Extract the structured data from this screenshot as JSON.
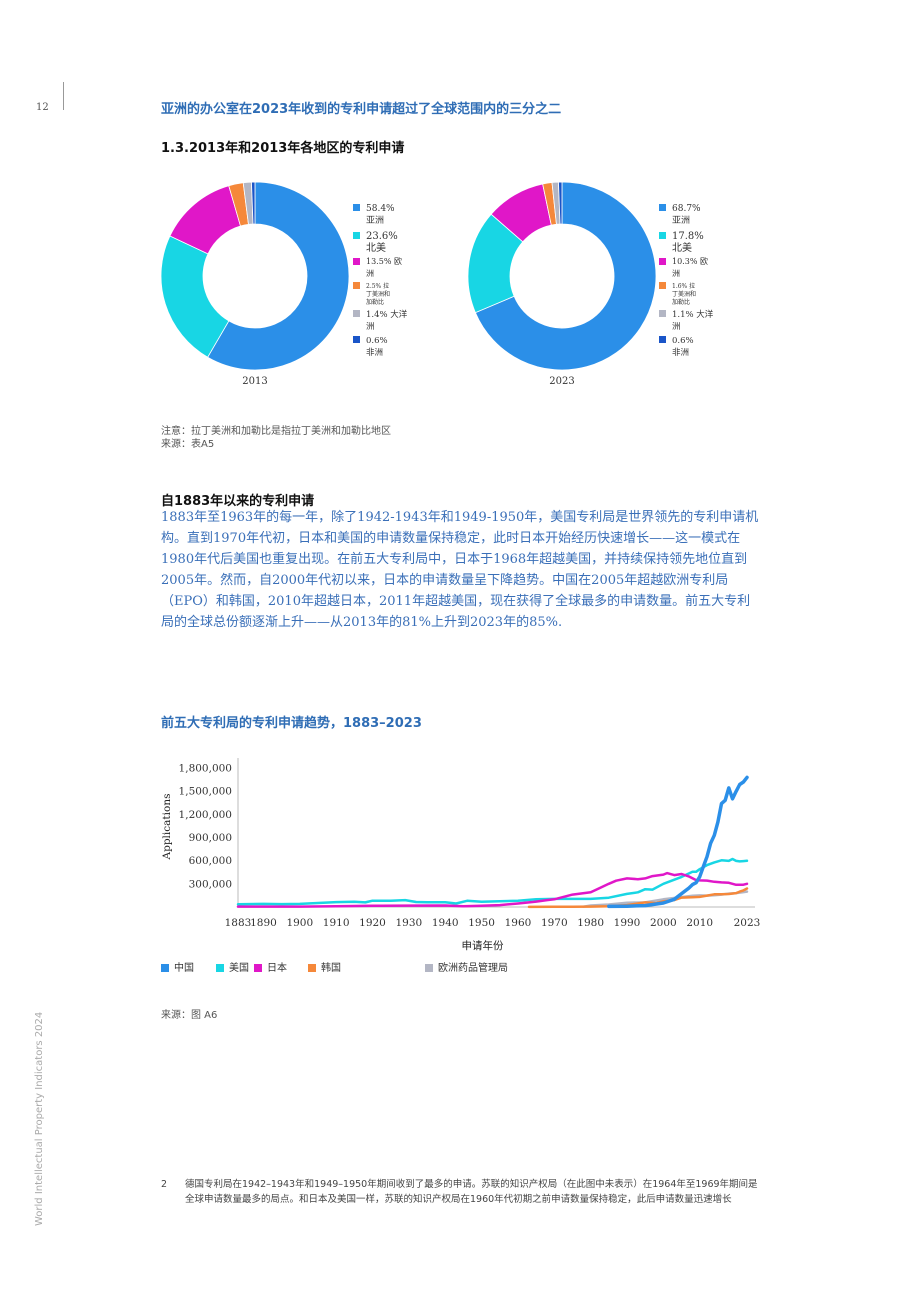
{
  "page": {
    "number": "12",
    "headline": "亚洲的办公室在2023年收到的专利申请超过了全球范围内的三分之二",
    "sidebar": "World Intellectual Property Indicators 2024"
  },
  "colors": {
    "asia": "#2b8fe8",
    "north_america": "#18d6e4",
    "europe": "#e017c8",
    "latam": "#f5883a",
    "oceania": "#b3b6c4",
    "africa": "#1a55c8",
    "china": "#2b8fe8",
    "usa": "#18d6e4",
    "japan": "#e017c8",
    "korea": "#f5883a",
    "epo": "#b3b6c4"
  },
  "donut_section": {
    "title": "1.3.2013年和2013年各地区的专利申请",
    "note": "注意：拉丁美洲和加勒比是指拉丁美洲和加勒比地区",
    "source": "来源：表A5"
  },
  "text_section": {
    "title": "自1883年以来的专利申请",
    "body": "1883年至1963年的每一年，除了1942-1943年和1949-1950年，美国专利局是世界领先的专利申请机构。直到1970年代初，日本和美国的申请数量保持稳定，此时日本开始经历快速增长——这一模式在1980年代后美国也重复出现。在前五大专利局中，日本于1968年超越美国，并持续保持领先地位直到2005年。然而，自2000年代初以来，日本的申请数量呈下降趋势。中国在2005年超越欧洲专利局（EPO）和韩国，2010年超越日本，2011年超越美国，现在获得了全球最多的申请数量。前五大专利局的全球总份额逐渐上升——从2013年的81%上升到2023年的85%."
  },
  "line_section": {
    "title": "前五大专利局的专利申请趋势，1883–2023",
    "source": "来源：图 A6"
  },
  "footnote": {
    "number": "2",
    "text": "德国专利局在1942–1943年和1949–1950年期间收到了最多的申请。苏联的知识产权局（在此图中未表示）在1964年至1969年期间是全球申请数量最多的局点。和日本及美国一样，苏联的知识产权局在1960年代初期之前申请数量保持稳定，此后申请数量迅速增长"
  },
  "chart_data": [
    {
      "type": "pie",
      "title": "2013",
      "donut": true,
      "slices": [
        {
          "label": "亚洲",
          "pct_text": "58.4%",
          "value": 58.4
        },
        {
          "label": "北美",
          "pct_text": "23.6%",
          "value": 23.6
        },
        {
          "label": "欧洲",
          "pct_text": "13.5%",
          "value": 13.5
        },
        {
          "label": "拉丁美洲和加勒比",
          "pct_text": "2.5%",
          "value": 2.5
        },
        {
          "label": "大洋洲",
          "pct_text": "1.4%",
          "value": 1.4
        },
        {
          "label": "非洲",
          "pct_text": "0.6%",
          "value": 0.6
        }
      ],
      "legend_text": [
        "58.4%",
        "亚洲",
        "23.6%",
        "北美",
        "13.5% 欧",
        "洲",
        "2.5% 拉",
        "丁美洲和",
        "加勒比",
        "1.4% 大洋",
        "洲",
        "0.6%",
        "非洲"
      ]
    },
    {
      "type": "pie",
      "title": "2023",
      "donut": true,
      "slices": [
        {
          "label": "亚洲",
          "pct_text": "68.7%",
          "value": 68.7
        },
        {
          "label": "北美",
          "pct_text": "17.8%",
          "value": 17.8
        },
        {
          "label": "欧洲",
          "pct_text": "10.3%",
          "value": 10.3
        },
        {
          "label": "拉丁美洲和加勒比",
          "pct_text": "1.6%",
          "value": 1.6
        },
        {
          "label": "大洋洲",
          "pct_text": "1.1%",
          "value": 1.1
        },
        {
          "label": "非洲",
          "pct_text": "0.6%",
          "value": 0.6
        }
      ],
      "legend_text": [
        "68.7%",
        "亚洲",
        "17.8%",
        "北美",
        "10.3% 欧",
        "洲",
        "1.6% 拉",
        "丁美洲和",
        "加勒比",
        "1.1% 大洋",
        "洲",
        "0.6%",
        "非洲"
      ]
    },
    {
      "type": "line",
      "title": "前五大专利局的专利申请趋势，1883–2023",
      "xlabel": "申请年份",
      "ylabel": "Applications",
      "xlim": [
        1883,
        2023
      ],
      "ylim": [
        0,
        1800000
      ],
      "x_ticks": [
        1883,
        1890,
        1900,
        1910,
        1920,
        1930,
        1940,
        1950,
        1960,
        1970,
        1980,
        1990,
        2000,
        2010,
        2023
      ],
      "y_ticks": [
        300000,
        600000,
        900000,
        1200000,
        1500000,
        1800000
      ],
      "y_tick_labels": [
        "300,000",
        "600,000",
        "900,000",
        "1,200,000",
        "1,500,000",
        "1,800,000"
      ],
      "legend": [
        "中国",
        "美国",
        "日本",
        "韩国",
        "欧洲药品管理局"
      ],
      "series": [
        {
          "name": "中国",
          "color_key": "china",
          "points": [
            [
              1985,
              8000
            ],
            [
              1990,
              10000
            ],
            [
              1995,
              18000
            ],
            [
              2000,
              52000
            ],
            [
              2003,
              100000
            ],
            [
              2005,
              173000
            ],
            [
              2007,
              245000
            ],
            [
              2008,
              290000
            ],
            [
              2009,
              315000
            ],
            [
              2010,
              391000
            ],
            [
              2011,
              526000
            ],
            [
              2012,
              652000
            ],
            [
              2013,
              825000
            ],
            [
              2014,
              928000
            ],
            [
              2015,
              1101000
            ],
            [
              2016,
              1339000
            ],
            [
              2017,
              1382000
            ],
            [
              2018,
              1542000
            ],
            [
              2019,
              1401000
            ],
            [
              2020,
              1497000
            ],
            [
              2021,
              1586000
            ],
            [
              2022,
              1619000
            ],
            [
              2023,
              1678000
            ]
          ]
        },
        {
          "name": "美国",
          "color_key": "usa",
          "points": [
            [
              1883,
              35000
            ],
            [
              1890,
              40000
            ],
            [
              1895,
              38000
            ],
            [
              1900,
              40000
            ],
            [
              1905,
              52000
            ],
            [
              1910,
              64000
            ],
            [
              1915,
              68000
            ],
            [
              1918,
              60000
            ],
            [
              1920,
              82000
            ],
            [
              1925,
              80000
            ],
            [
              1929,
              90000
            ],
            [
              1932,
              65000
            ],
            [
              1935,
              62000
            ],
            [
              1940,
              62000
            ],
            [
              1943,
              45000
            ],
            [
              1946,
              80000
            ],
            [
              1950,
              67000
            ],
            [
              1955,
              75000
            ],
            [
              1960,
              80000
            ],
            [
              1965,
              100000
            ],
            [
              1970,
              105000
            ],
            [
              1975,
              105000
            ],
            [
              1980,
              105000
            ],
            [
              1985,
              120000
            ],
            [
              1990,
              170000
            ],
            [
              1993,
              190000
            ],
            [
              1995,
              230000
            ],
            [
              1997,
              225000
            ],
            [
              2000,
              300000
            ],
            [
              2005,
              390000
            ],
            [
              2008,
              456000
            ],
            [
              2009,
              456000
            ],
            [
              2010,
              490000
            ],
            [
              2012,
              543000
            ],
            [
              2014,
              578000
            ],
            [
              2016,
              605000
            ],
            [
              2018,
              597000
            ],
            [
              2019,
              621000
            ],
            [
              2020,
              597000
            ],
            [
              2021,
              591000
            ],
            [
              2022,
              594000
            ],
            [
              2023,
              598000
            ]
          ]
        },
        {
          "name": "日本",
          "color_key": "japan",
          "points": [
            [
              1883,
              5000
            ],
            [
              1900,
              5000
            ],
            [
              1910,
              10000
            ],
            [
              1920,
              15000
            ],
            [
              1930,
              18000
            ],
            [
              1940,
              20000
            ],
            [
              1945,
              10000
            ],
            [
              1950,
              15000
            ],
            [
              1955,
              25000
            ],
            [
              1960,
              45000
            ],
            [
              1965,
              70000
            ],
            [
              1968,
              90000
            ],
            [
              1970,
              100000
            ],
            [
              1975,
              160000
            ],
            [
              1980,
              190000
            ],
            [
              1985,
              300000
            ],
            [
              1987,
              340000
            ],
            [
              1990,
              370000
            ],
            [
              1993,
              360000
            ],
            [
              1995,
              370000
            ],
            [
              1997,
              400000
            ],
            [
              2000,
              420000
            ],
            [
              2001,
              439000
            ],
            [
              2003,
              413000
            ],
            [
              2005,
              427000
            ],
            [
              2007,
              396000
            ],
            [
              2009,
              348000
            ],
            [
              2010,
              344000
            ],
            [
              2012,
              342000
            ],
            [
              2014,
              326000
            ],
            [
              2016,
              318000
            ],
            [
              2018,
              313000
            ],
            [
              2020,
              288000
            ],
            [
              2021,
              289000
            ],
            [
              2022,
              289000
            ],
            [
              2023,
              300000
            ]
          ]
        },
        {
          "name": "韩国",
          "color_key": "korea",
          "points": [
            [
              1963,
              1000
            ],
            [
              1970,
              2000
            ],
            [
              1975,
              3000
            ],
            [
              1980,
              5000
            ],
            [
              1985,
              11000
            ],
            [
              1990,
              25000
            ],
            [
              1995,
              59000
            ],
            [
              1998,
              50000
            ],
            [
              2000,
              72000
            ],
            [
              2003,
              90000
            ],
            [
              2005,
              122000
            ],
            [
              2008,
              127000
            ],
            [
              2010,
              131000
            ],
            [
              2012,
              148000
            ],
            [
              2014,
              164000
            ],
            [
              2016,
              164000
            ],
            [
              2018,
              168000
            ],
            [
              2020,
              180000
            ],
            [
              2021,
              200000
            ],
            [
              2022,
              215000
            ],
            [
              2023,
              240000
            ]
          ]
        },
        {
          "name": "欧洲药品管理局",
          "color_key": "epo",
          "points": [
            [
              1978,
              4000
            ],
            [
              1980,
              20000
            ],
            [
              1985,
              32000
            ],
            [
              1990,
              56000
            ],
            [
              1995,
              60000
            ],
            [
              2000,
              100000
            ],
            [
              2005,
              128000
            ],
            [
              2008,
              146000
            ],
            [
              2010,
              150000
            ],
            [
              2012,
              148000
            ],
            [
              2014,
              152000
            ],
            [
              2016,
              160000
            ],
            [
              2018,
              174000
            ],
            [
              2020,
              180000
            ],
            [
              2022,
              193000
            ],
            [
              2023,
              199000
            ]
          ]
        }
      ]
    }
  ]
}
